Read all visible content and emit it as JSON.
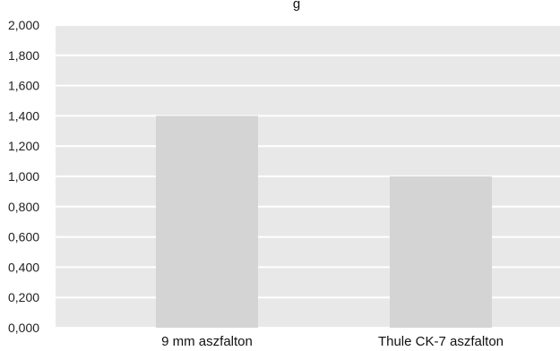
{
  "chart_data": {
    "type": "bar",
    "title": "g",
    "categories": [
      "9 mm aszfalton",
      "Thule CK-7 aszfalton"
    ],
    "values": [
      1.4,
      1.0
    ],
    "ylim": [
      0,
      2.0
    ],
    "yticks": [
      "0,000",
      "0,200",
      "0,400",
      "0,600",
      "0,800",
      "1,000",
      "1,200",
      "1,400",
      "1,600",
      "1,800",
      "2,000"
    ],
    "xlabel": "",
    "ylabel": "",
    "grid": true,
    "legend": "none",
    "colors": {
      "bar": "#d4d4d4",
      "plot_background": "#e8e8e8",
      "gridline": "#ffffff"
    }
  }
}
